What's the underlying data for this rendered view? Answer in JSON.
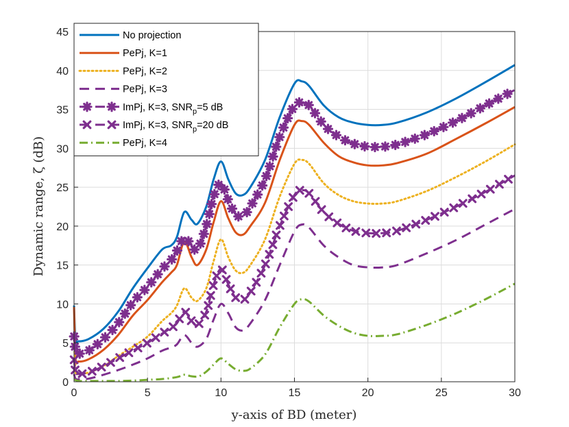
{
  "chart_data": {
    "type": "line",
    "title": "",
    "xlabel": "y-axis of BD (meter)",
    "ylabel": "Dynamic range, ζ (dB)",
    "xlim": [
      0,
      30
    ],
    "ylim": [
      0,
      45
    ],
    "xticks": [
      0,
      5,
      10,
      15,
      20,
      25,
      30
    ],
    "yticks": [
      0,
      5,
      10,
      15,
      20,
      25,
      30,
      35,
      40,
      45
    ],
    "grid": true,
    "legend_position": "top-left",
    "series": [
      {
        "name": "No projection",
        "legend": {
          "main": "No projection"
        },
        "color": "#0072BD",
        "style": "solid",
        "marker": "none",
        "x": [
          0,
          0.1,
          0.3,
          1,
          2,
          3,
          4,
          5,
          6,
          6.6,
          7,
          7.5,
          8,
          8.4,
          9,
          9.5,
          10,
          10.5,
          11,
          11.5,
          12,
          13,
          14,
          15,
          15.5,
          16,
          17,
          18,
          19,
          20,
          21,
          22,
          24,
          26,
          28,
          30
        ],
        "y": [
          9.8,
          5.5,
          5.2,
          5.5,
          6.8,
          9.0,
          12.0,
          14.6,
          17.0,
          17.5,
          18.6,
          21.8,
          20.8,
          20.3,
          22.5,
          26.0,
          28.3,
          26.0,
          24.2,
          24.0,
          25.0,
          28.5,
          34.0,
          38.3,
          38.6,
          38.0,
          35.5,
          34.0,
          33.3,
          33.0,
          33.0,
          33.3,
          34.6,
          36.4,
          38.5,
          40.7
        ]
      },
      {
        "name": "PePj, K=1",
        "legend": {
          "main": "PePj, K=1"
        },
        "color": "#D95319",
        "style": "solid",
        "marker": "none",
        "x": [
          0,
          0.1,
          0.3,
          1,
          2,
          3,
          4,
          5,
          6,
          6.6,
          7,
          7.5,
          8,
          8.4,
          9,
          9.5,
          10,
          10.5,
          11,
          11.5,
          12,
          13,
          14,
          15,
          15.5,
          16,
          17,
          18,
          19,
          20,
          21,
          22,
          24,
          26,
          28,
          30
        ],
        "y": [
          9.6,
          3.0,
          2.6,
          2.9,
          4.1,
          6.0,
          8.5,
          10.5,
          12.8,
          14.0,
          15.0,
          18.0,
          16.0,
          15.0,
          17.0,
          20.5,
          23.2,
          21.0,
          19.2,
          18.9,
          20.0,
          23.0,
          28.5,
          33.0,
          33.5,
          33.0,
          30.7,
          29.0,
          28.2,
          27.8,
          27.8,
          28.1,
          29.3,
          31.2,
          33.2,
          35.3
        ]
      },
      {
        "name": "PePj, K=2",
        "legend": {
          "main": "PePj, K=2"
        },
        "color": "#EDB120",
        "style": "dotted",
        "marker": "none",
        "x": [
          0,
          0.1,
          0.3,
          1,
          2,
          3,
          4,
          5,
          6,
          6.6,
          7,
          7.5,
          8,
          8.4,
          9,
          9.5,
          10,
          10.5,
          11,
          11.5,
          12,
          13,
          14,
          15,
          15.5,
          16,
          17,
          18,
          19,
          20,
          21,
          22,
          24,
          26,
          28,
          30
        ],
        "y": [
          6.0,
          1.5,
          1.0,
          1.2,
          2.0,
          3.3,
          4.5,
          5.8,
          7.8,
          8.8,
          9.8,
          12.0,
          10.8,
          10.4,
          12.0,
          15.5,
          18.3,
          16.0,
          14.3,
          14.0,
          15.0,
          18.3,
          23.8,
          28.0,
          28.5,
          28.0,
          25.5,
          24.0,
          23.2,
          22.9,
          22.9,
          23.2,
          24.5,
          26.3,
          28.3,
          30.5
        ]
      },
      {
        "name": "PePj, K=3",
        "legend": {
          "main": "PePj, K=3"
        },
        "color": "#7E2F8E",
        "style": "dashed",
        "marker": "none",
        "x": [
          0,
          0.1,
          0.3,
          1,
          2,
          3,
          4,
          5,
          6,
          6.6,
          7,
          7.5,
          8,
          8.4,
          9,
          9.5,
          10,
          10.5,
          11,
          11.5,
          12,
          13,
          14,
          15,
          15.5,
          16,
          17,
          18,
          19,
          20,
          21,
          22,
          24,
          26,
          28,
          30
        ],
        "y": [
          1.0,
          0.4,
          0.3,
          0.4,
          0.9,
          1.5,
          2.2,
          3.0,
          4.0,
          4.4,
          4.8,
          6.0,
          5.0,
          4.5,
          5.5,
          8.0,
          10.0,
          8.8,
          7.0,
          6.6,
          7.5,
          10.5,
          15.0,
          19.3,
          20.2,
          19.8,
          17.5,
          16.0,
          15.0,
          14.7,
          14.7,
          15.0,
          16.5,
          18.2,
          20.2,
          22.2
        ]
      },
      {
        "name": "ImPj, K=3, SNRp=5 dB",
        "legend": {
          "main": "ImPj, K=3, SNR",
          "sub": "p",
          "tail": "=5 dB"
        },
        "color": "#7E2F8E",
        "style": "dashed",
        "marker": "star",
        "x": [
          0,
          0.1,
          0.3,
          1,
          2,
          3,
          4,
          5,
          6,
          6.6,
          7,
          7.5,
          8,
          8.4,
          9,
          9.5,
          10,
          10.5,
          11,
          11.5,
          12,
          13,
          14,
          15,
          15.5,
          16,
          17,
          18,
          19,
          20,
          21,
          22,
          24,
          26,
          28,
          30
        ],
        "y": [
          6.0,
          4.0,
          3.6,
          4.0,
          5.5,
          7.5,
          10.2,
          12.2,
          14.5,
          15.6,
          16.8,
          18.5,
          17.5,
          17.0,
          20.0,
          23.8,
          25.5,
          23.3,
          21.5,
          21.3,
          22.5,
          26.0,
          31.5,
          35.5,
          35.8,
          35.5,
          33.0,
          31.5,
          30.6,
          30.2,
          30.2,
          30.5,
          31.8,
          33.5,
          35.5,
          37.5
        ]
      },
      {
        "name": "ImPj, K=3, SNRp=20 dB",
        "legend": {
          "main": "ImPj, K=3, SNR",
          "sub": "p",
          "tail": "=20 dB"
        },
        "color": "#7E2F8E",
        "style": "dashed",
        "marker": "x",
        "x": [
          0,
          0.1,
          0.3,
          1,
          2,
          3,
          4,
          5,
          6,
          6.6,
          7,
          7.5,
          8,
          8.4,
          9,
          9.5,
          10,
          10.5,
          11,
          11.5,
          12,
          13,
          14,
          15,
          15.5,
          16,
          17,
          18,
          19,
          20,
          21,
          22,
          24,
          26,
          28,
          30
        ],
        "y": [
          3.0,
          1.2,
          1.0,
          1.2,
          2.0,
          3.0,
          4.0,
          5.0,
          6.2,
          6.9,
          7.5,
          9.0,
          7.8,
          7.3,
          9.0,
          12.5,
          14.5,
          12.5,
          10.8,
          10.5,
          11.5,
          15.0,
          20.0,
          24.0,
          24.6,
          24.2,
          21.8,
          20.3,
          19.4,
          19.1,
          19.1,
          19.4,
          20.8,
          22.5,
          24.4,
          26.5
        ]
      },
      {
        "name": "PePj, K=4",
        "legend": {
          "main": "PePj, K=4"
        },
        "color": "#77AC30",
        "style": "dashdot",
        "marker": "none",
        "x": [
          0,
          0.3,
          1,
          2,
          3,
          4,
          5,
          6,
          7,
          7.5,
          8,
          8.5,
          9,
          9.5,
          10,
          10.5,
          11,
          11.5,
          12,
          13,
          14,
          15,
          15.5,
          16,
          17,
          18,
          19,
          20,
          21,
          22,
          24,
          26,
          28,
          30
        ],
        "y": [
          0.3,
          0.1,
          0.1,
          0.1,
          0.1,
          0.15,
          0.25,
          0.35,
          0.6,
          0.9,
          0.7,
          0.7,
          1.3,
          2.2,
          3.0,
          2.3,
          1.6,
          1.4,
          1.7,
          3.5,
          7.0,
          10.0,
          10.6,
          10.3,
          8.5,
          7.2,
          6.3,
          5.9,
          5.9,
          6.1,
          7.3,
          8.8,
          10.6,
          12.6
        ]
      }
    ]
  }
}
